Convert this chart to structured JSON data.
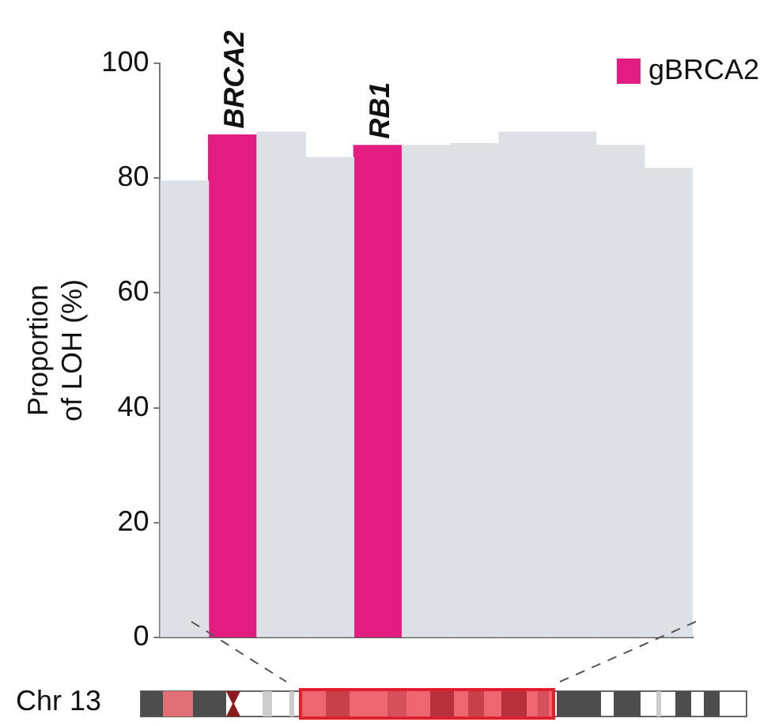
{
  "chart_data": {
    "type": "bar",
    "ylabel": "Proportion\nof LOH (%)",
    "xlabel": "Chr 13",
    "categories": [
      null,
      null,
      null,
      null,
      null,
      null,
      null,
      null,
      null,
      null,
      null
    ],
    "series": [
      {
        "color": "#dde1e5",
        "values": [
          79.5,
          null,
          88,
          83.6,
          null,
          85.7,
          86,
          88,
          88,
          85.7,
          81.7
        ]
      },
      {
        "name": "gBRCA2",
        "color": "#e31c82",
        "values": [
          null,
          87.5,
          null,
          null,
          85.7,
          null,
          null,
          null,
          null,
          null,
          null
        ]
      }
    ],
    "ylim": [
      0,
      100
    ],
    "yticks": [
      0,
      20,
      40,
      60,
      80,
      100
    ],
    "annotations": [
      "BRCA2",
      "RB1"
    ],
    "legend": "top right",
    "grid": false
  }
}
